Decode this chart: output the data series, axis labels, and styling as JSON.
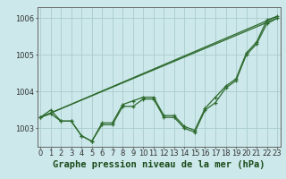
{
  "title": "Graphe pression niveau de la mer (hPa)",
  "background_color": "#cce8ea",
  "grid_color": "#aacccc",
  "line_color": "#2d6a2d",
  "x_hours": [
    0,
    1,
    2,
    3,
    4,
    5,
    6,
    7,
    8,
    9,
    10,
    11,
    12,
    13,
    14,
    15,
    16,
    17,
    18,
    19,
    20,
    21,
    22,
    23
  ],
  "series_with_markers": [
    [
      1003.3,
      1003.5,
      1003.2,
      1003.2,
      1002.8,
      1002.65,
      1003.1,
      1003.1,
      1003.6,
      1003.6,
      1003.8,
      1003.8,
      1003.3,
      1003.3,
      1003.0,
      1002.9,
      1003.5,
      1003.7,
      1004.1,
      1004.3,
      1005.0,
      1005.3,
      1005.85,
      1006.0
    ],
    [
      1003.3,
      1003.4,
      1003.2,
      1003.2,
      1002.8,
      1002.65,
      1003.15,
      1003.15,
      1003.65,
      1003.75,
      1003.85,
      1003.85,
      1003.35,
      1003.35,
      1003.05,
      1002.95,
      1003.55,
      1003.85,
      1004.15,
      1004.35,
      1005.05,
      1005.35,
      1005.95,
      1006.05
    ]
  ],
  "series_straight": [
    [
      [
        0,
        23
      ],
      [
        1003.3,
        1006.0
      ]
    ],
    [
      [
        0,
        23
      ],
      [
        1003.3,
        1006.05
      ]
    ]
  ],
  "ylim": [
    1002.5,
    1006.3
  ],
  "yticks": [
    1003,
    1004,
    1005,
    1006
  ],
  "xlim": [
    -0.3,
    23.3
  ],
  "title_fontsize": 7.5,
  "tick_fontsize": 6.0
}
